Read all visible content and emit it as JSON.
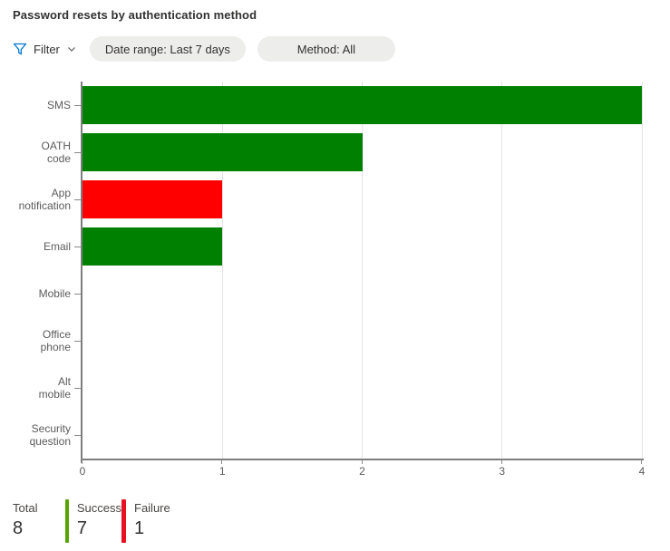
{
  "header": {
    "title": "Password resets by authentication method"
  },
  "filter_bar": {
    "filter_label": "Filter",
    "accent_color": "#0078d4",
    "pills": [
      {
        "label": "Date range: Last 7 days"
      },
      {
        "label": "Method: All"
      }
    ]
  },
  "chart_data": {
    "type": "bar",
    "orientation": "horizontal",
    "title": "Password resets by authentication method",
    "categories": [
      "SMS",
      "OATH code",
      "App notification",
      "Email",
      "Mobile",
      "Office phone",
      "Alt mobile",
      "Security question"
    ],
    "categories_wrapped": [
      "SMS",
      "OATH\ncode",
      "App\nnotification",
      "Email",
      "Mobile",
      "Office\nphone",
      "Alt\nmobile",
      "Security\nquestion"
    ],
    "values": [
      4,
      2,
      1,
      1,
      0,
      0,
      0,
      0
    ],
    "statuses": [
      "success",
      "success",
      "failure",
      "success",
      "none",
      "none",
      "none",
      "none"
    ],
    "bar_colors": [
      "#008000",
      "#008000",
      "#ff0000",
      "#008000",
      null,
      null,
      null,
      null
    ],
    "success_color": "#008000",
    "failure_color": "#ff0000",
    "xlabel": "",
    "ylabel": "",
    "xlim": [
      0,
      4
    ],
    "x_ticks": [
      0,
      1,
      2,
      3,
      4
    ],
    "grid": true,
    "legend_position": "none"
  },
  "summary": {
    "items": [
      {
        "label": "Total",
        "value": "8",
        "color": null
      },
      {
        "label": "Success",
        "value": "7",
        "color": "#57a300"
      },
      {
        "label": "Failure",
        "value": "1",
        "color": "#e81123"
      }
    ]
  }
}
